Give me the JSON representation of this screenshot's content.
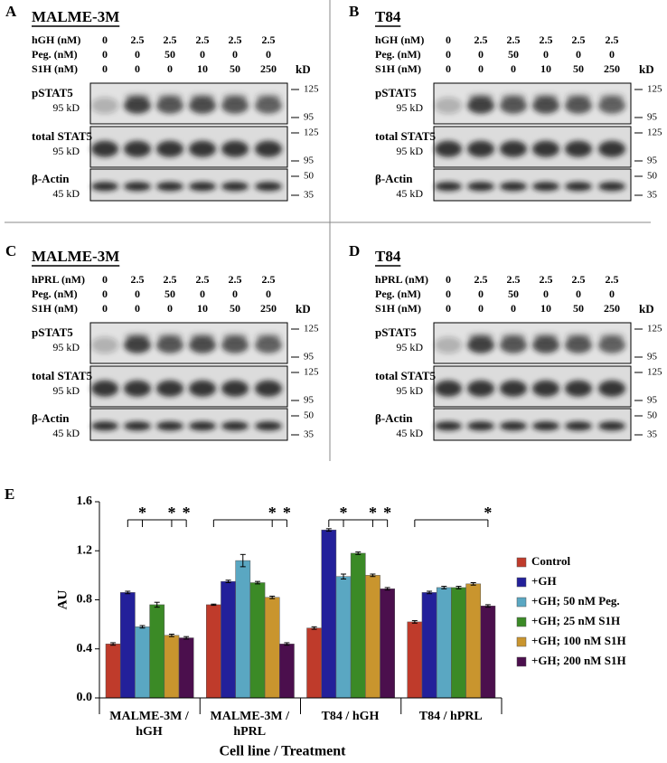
{
  "panels": [
    {
      "letter": "A",
      "title": "MALME-3M",
      "conditions": [
        {
          "label": "hGH (nM)",
          "values": [
            "0",
            "2.5",
            "2.5",
            "2.5",
            "2.5",
            "2.5"
          ]
        },
        {
          "label": "Peg. (nM)",
          "values": [
            "0",
            "0",
            "50",
            "0",
            "0",
            "0"
          ]
        },
        {
          "label": "S1H (nM)",
          "values": [
            "0",
            "0",
            "0",
            "10",
            "50",
            "250"
          ]
        }
      ],
      "unit_header": "kD",
      "blots": [
        {
          "name": "pSTAT5",
          "size": "95 kD",
          "markers": [
            "125",
            "95"
          ]
        },
        {
          "name": "total STAT5",
          "size": "95 kD",
          "markers": [
            "125",
            "95"
          ]
        },
        {
          "name": "β-Actin",
          "size": "45 kD",
          "markers": [
            "50",
            "35"
          ]
        }
      ]
    },
    {
      "letter": "B",
      "title": "T84",
      "conditions": [
        {
          "label": "hGH (nM)",
          "values": [
            "0",
            "2.5",
            "2.5",
            "2.5",
            "2.5",
            "2.5"
          ]
        },
        {
          "label": "Peg. (nM)",
          "values": [
            "0",
            "0",
            "50",
            "0",
            "0",
            "0"
          ]
        },
        {
          "label": "S1H (nM)",
          "values": [
            "0",
            "0",
            "0",
            "10",
            "50",
            "250"
          ]
        }
      ],
      "unit_header": "kD",
      "blots": [
        {
          "name": "pSTAT5",
          "size": "95 kD",
          "markers": [
            "125",
            "95"
          ]
        },
        {
          "name": "total STAT5",
          "size": "95 kD",
          "markers": [
            "125",
            "95"
          ]
        },
        {
          "name": "β-Actin",
          "size": "45 kD",
          "markers": [
            "50",
            "35"
          ]
        }
      ]
    },
    {
      "letter": "C",
      "title": "MALME-3M",
      "conditions": [
        {
          "label": "hPRL (nM)",
          "values": [
            "0",
            "2.5",
            "2.5",
            "2.5",
            "2.5",
            "2.5"
          ]
        },
        {
          "label": "Peg. (nM)",
          "values": [
            "0",
            "0",
            "50",
            "0",
            "0",
            "0"
          ]
        },
        {
          "label": "S1H (nM)",
          "values": [
            "0",
            "0",
            "0",
            "10",
            "50",
            "250"
          ]
        }
      ],
      "unit_header": "kD",
      "blots": [
        {
          "name": "pSTAT5",
          "size": "95 kD",
          "markers": [
            "125",
            "95"
          ]
        },
        {
          "name": "total STAT5",
          "size": "95 kD",
          "markers": [
            "125",
            "95"
          ]
        },
        {
          "name": "β-Actin",
          "size": "45 kD",
          "markers": [
            "50",
            "35"
          ]
        }
      ]
    },
    {
      "letter": "D",
      "title": "T84",
      "conditions": [
        {
          "label": "hPRL (nM)",
          "values": [
            "0",
            "2.5",
            "2.5",
            "2.5",
            "2.5",
            "2.5"
          ]
        },
        {
          "label": "Peg. (nM)",
          "values": [
            "0",
            "0",
            "50",
            "0",
            "0",
            "0"
          ]
        },
        {
          "label": "S1H (nM)",
          "values": [
            "0",
            "0",
            "0",
            "10",
            "50",
            "250"
          ]
        }
      ],
      "unit_header": "kD",
      "blots": [
        {
          "name": "pSTAT5",
          "size": "95 kD",
          "markers": [
            "125",
            "95"
          ]
        },
        {
          "name": "total STAT5",
          "size": "95 kD",
          "markers": [
            "125",
            "95"
          ]
        },
        {
          "name": "β-Actin",
          "size": "45 kD",
          "markers": [
            "50",
            "35"
          ]
        }
      ]
    }
  ],
  "chart_data": {
    "type": "bar",
    "letter": "E",
    "y_label": "AU",
    "x_label": "Cell line / Treatment",
    "categories": [
      "MALME-3M /\nhGH",
      "MALME-3M /\nhPRL",
      "T84 / hGH",
      "T84 / hPRL"
    ],
    "series": [
      {
        "name": "Control",
        "color": "#bf3b2b",
        "values": [
          0.44,
          0.76,
          0.57,
          0.62
        ],
        "errors": [
          0.01,
          0.005,
          0.01,
          0.01
        ]
      },
      {
        "name": "+GH",
        "color": "#23209a",
        "values": [
          0.86,
          0.95,
          1.37,
          0.86
        ],
        "errors": [
          0.01,
          0.01,
          0.01,
          0.01
        ]
      },
      {
        "name": "+GH; 50 nM Peg.",
        "color": "#5aa7c2",
        "values": [
          0.58,
          1.12,
          0.99,
          0.9
        ],
        "errors": [
          0.01,
          0.05,
          0.02,
          0.01
        ]
      },
      {
        "name": "+GH; 25 nM S1H",
        "color": "#3b8a26",
        "values": [
          0.76,
          0.94,
          1.18,
          0.9
        ],
        "errors": [
          0.02,
          0.01,
          0.01,
          0.01
        ]
      },
      {
        "name": "+GH; 100 nM S1H",
        "color": "#c9952e",
        "values": [
          0.51,
          0.82,
          1.0,
          0.93
        ],
        "errors": [
          0.01,
          0.01,
          0.01,
          0.01
        ]
      },
      {
        "name": "+GH; 200 nM S1H",
        "color": "#4b0f4d",
        "values": [
          0.49,
          0.44,
          0.89,
          0.75
        ],
        "errors": [
          0.01,
          0.01,
          0.01,
          0.01
        ]
      }
    ],
    "ylim": [
      0,
      1.6
    ],
    "yticks": [
      {
        "value": 0,
        "label": "0.0"
      },
      {
        "value": 0.4,
        "label": "0.4"
      },
      {
        "value": 0.8,
        "label": "0.8"
      },
      {
        "value": 1.2,
        "label": "1.2"
      },
      {
        "value": 1.6,
        "label": "1.6"
      }
    ],
    "significance": [
      {
        "reference": "+GH",
        "marked": [
          {
            "series": "+GH; 50 nM Peg.",
            "label": "*"
          },
          {
            "series": "+GH; 100 nM S1H",
            "label": "*"
          },
          {
            "series": "+GH; 200 nM S1H",
            "label": "*"
          }
        ]
      },
      {
        "reference": "Control",
        "marked": [
          {
            "series": "+GH; 100 nM S1H",
            "label": "*"
          },
          {
            "series": "+GH; 200 nM S1H",
            "label": "*"
          }
        ]
      },
      {
        "reference": "+GH",
        "marked": [
          {
            "series": "+GH; 50 nM Peg.",
            "label": "*"
          },
          {
            "series": "+GH; 100 nM S1H",
            "label": "*"
          },
          {
            "series": "+GH; 200 nM S1H",
            "label": "*"
          }
        ]
      },
      {
        "reference": "Control",
        "marked": [
          {
            "series": "+GH; 200 nM S1H",
            "label": "*"
          }
        ]
      }
    ],
    "legend": "right"
  }
}
